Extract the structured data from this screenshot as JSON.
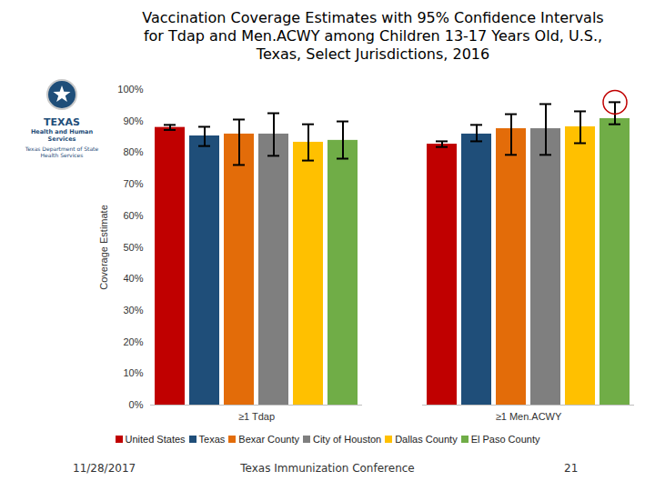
{
  "chart_data": {
    "type": "bar",
    "title": "Vaccination Coverage Estimates with 95% Confidence Intervals for Tdap and Men.ACWY among Children 13-17 Years Old, U.S., Texas, Select Jurisdictions, 2016",
    "y_label": "Coverage Estimate",
    "categories": [
      "≥1 Tdap",
      "≥1 Men.ACWY"
    ],
    "series": [
      {
        "name": "United States",
        "color": "#c00000",
        "values": [
          88.0,
          82.7
        ],
        "ci_lower": [
          87.2,
          81.8
        ],
        "ci_upper": [
          88.8,
          83.6
        ]
      },
      {
        "name": "Texas",
        "color": "#1f4e79",
        "values": [
          85.3,
          85.9
        ],
        "ci_lower": [
          82.1,
          83.6
        ],
        "ci_upper": [
          88.2,
          88.8
        ]
      },
      {
        "name": "Bexar County",
        "color": "#e36c09",
        "values": [
          85.9,
          87.6
        ],
        "ci_lower": [
          76.1,
          79.3
        ],
        "ci_upper": [
          90.5,
          92.2
        ]
      },
      {
        "name": "City of Houston",
        "color": "#7f7f7f",
        "values": [
          85.9,
          87.6
        ],
        "ci_lower": [
          79.0,
          79.3
        ],
        "ci_upper": [
          92.5,
          95.4
        ]
      },
      {
        "name": "Dallas County",
        "color": "#ffc000",
        "values": [
          83.3,
          88.2
        ],
        "ci_lower": [
          77.5,
          83.0
        ],
        "ci_upper": [
          89.0,
          93.1
        ]
      },
      {
        "name": "El Paso County",
        "color": "#70ad47",
        "values": [
          83.9,
          90.8
        ],
        "ci_lower": [
          78.1,
          89.0
        ],
        "ci_upper": [
          89.9,
          96.0
        ]
      }
    ],
    "ylim": [
      0,
      100
    ],
    "yticks": [
      {
        "value": 0,
        "label": "0%"
      },
      {
        "value": 10,
        "label": "10%"
      },
      {
        "value": 20,
        "label": "20%"
      },
      {
        "value": 30,
        "label": "30%"
      },
      {
        "value": 40,
        "label": "40%"
      },
      {
        "value": 50,
        "label": "50%"
      },
      {
        "value": 60,
        "label": "60%"
      },
      {
        "value": 70,
        "label": "70%"
      },
      {
        "value": 80,
        "label": "80%"
      },
      {
        "value": 90,
        "label": "90%"
      },
      {
        "value": 100,
        "label": "100%"
      }
    ],
    "grid": false,
    "legend": "bottom"
  },
  "logo": {
    "name": "TEXAS",
    "agency": "Health and Human Services",
    "department": "Texas Department of State Health Services"
  },
  "footer": {
    "date": "11/28/2017",
    "event": "Texas Immunization Conference",
    "page": "21"
  }
}
